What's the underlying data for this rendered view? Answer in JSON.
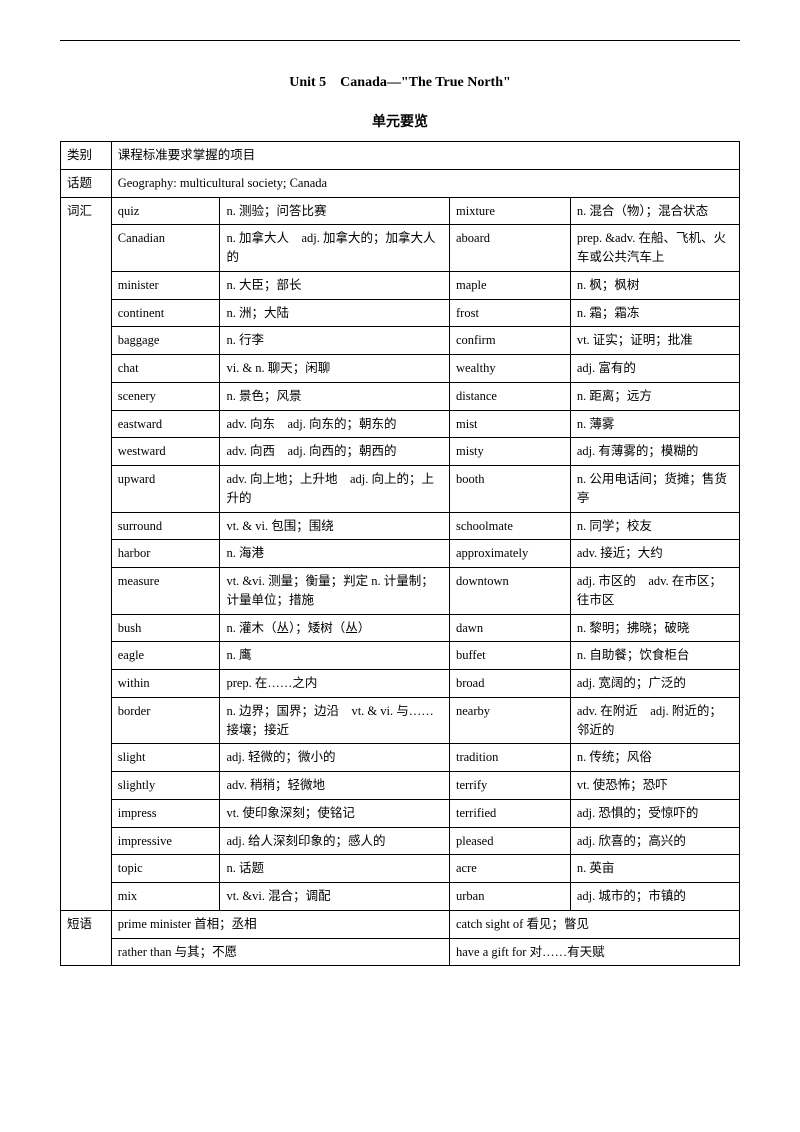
{
  "title": "Unit 5　Canada—\"The True North\"",
  "subtitle": "单元要览",
  "header_row": {
    "cat": "类别",
    "desc": "课程标准要求掌握的项目"
  },
  "topic_row": {
    "cat": "话题",
    "desc": "Geography: multicultural society; Canada"
  },
  "vocab_label": "词汇",
  "vocab": [
    {
      "w1": "quiz",
      "d1": "n. 测验；问答比赛",
      "w2": "mixture",
      "d2": "n. 混合（物）；混合状态"
    },
    {
      "w1": "Canadian",
      "d1": "n. 加拿大人　adj. 加拿大的；加拿大人的",
      "w2": "aboard",
      "d2": "prep. &adv. 在船、飞机、火车或公共汽车上"
    },
    {
      "w1": "minister",
      "d1": "n. 大臣；部长",
      "w2": "maple",
      "d2": "n. 枫；枫树"
    },
    {
      "w1": "continent",
      "d1": "n. 洲；大陆",
      "w2": "frost",
      "d2": "n. 霜；霜冻"
    },
    {
      "w1": "baggage",
      "d1": "n. 行李",
      "w2": "confirm",
      "d2": "vt. 证实；证明；批准"
    },
    {
      "w1": "chat",
      "d1": "vi. & n. 聊天；闲聊",
      "w2": "wealthy",
      "d2": "adj. 富有的"
    },
    {
      "w1": "scenery",
      "d1": "n. 景色；风景",
      "w2": "distance",
      "d2": "n. 距离；远方"
    },
    {
      "w1": "eastward",
      "d1": "adv. 向东　adj. 向东的；朝东的",
      "w2": "mist",
      "d2": "n. 薄雾"
    },
    {
      "w1": "westward",
      "d1": "adv. 向西　adj. 向西的；朝西的",
      "w2": "misty",
      "d2": "adj. 有薄雾的；模糊的"
    },
    {
      "w1": "upward",
      "d1": "adv. 向上地；上升地　adj. 向上的；上升的",
      "w2": "booth",
      "d2": "n. 公用电话间；货摊；售货亭"
    },
    {
      "w1": "surround",
      "d1": "vt. & vi. 包围；围绕",
      "w2": "schoolmate",
      "d2": "n. 同学；校友"
    },
    {
      "w1": "harbor",
      "d1": "n. 海港",
      "w2": "approximately",
      "d2": "adv. 接近；大约"
    },
    {
      "w1": "measure",
      "d1": "vt. &vi. 测量；衡量；判定 n. 计量制；计量单位；措施",
      "w2": "downtown",
      "d2": "adj. 市区的　adv. 在市区；往市区"
    },
    {
      "w1": "bush",
      "d1": "n. 灌木（丛）；矮树（丛）",
      "w2": "dawn",
      "d2": "n. 黎明；拂晓；破晓"
    },
    {
      "w1": "eagle",
      "d1": "n. 鹰",
      "w2": "buffet",
      "d2": "n. 自助餐；饮食柜台"
    },
    {
      "w1": "within",
      "d1": "prep. 在……之内",
      "w2": "broad",
      "d2": "adj. 宽阔的；广泛的"
    },
    {
      "w1": "border",
      "d1": "n. 边界；国界；边沿　vt. & vi. 与……接壤；接近",
      "w2": "nearby",
      "d2": "adv. 在附近　adj. 附近的；邻近的"
    },
    {
      "w1": "slight",
      "d1": "adj. 轻微的；微小的",
      "w2": "tradition",
      "d2": "n. 传统；风俗"
    },
    {
      "w1": "slightly",
      "d1": "adv. 稍稍；轻微地",
      "w2": "terrify",
      "d2": "vt. 使恐怖；恐吓"
    },
    {
      "w1": "impress",
      "d1": "vt. 使印象深刻；使铭记",
      "w2": "terrified",
      "d2": "adj. 恐惧的；受惊吓的"
    },
    {
      "w1": "impressive",
      "d1": "adj. 给人深刻印象的；感人的",
      "w2": "pleased",
      "d2": "adj. 欣喜的；高兴的"
    },
    {
      "w1": "topic",
      "d1": "n. 话题",
      "w2": "acre",
      "d2": "n. 英亩"
    },
    {
      "w1": "mix",
      "d1": "vt. &vi. 混合；调配",
      "w2": "urban",
      "d2": "adj. 城市的；市镇的"
    }
  ],
  "phrase_label": "短语",
  "phrases": [
    {
      "c1": "prime minister 首相；丞相",
      "c2": "catch sight of 看见；瞥见"
    },
    {
      "c1": "rather than 与其；不愿",
      "c2": "have a gift for 对……有天赋"
    }
  ]
}
